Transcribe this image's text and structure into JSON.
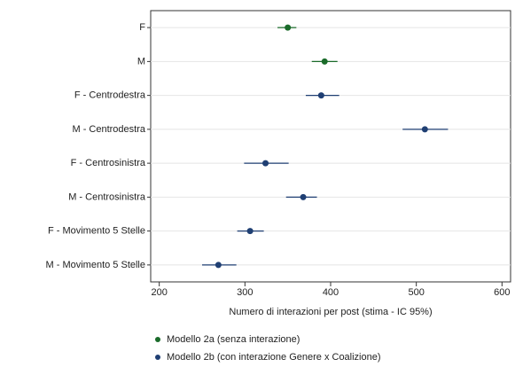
{
  "chart_data": {
    "type": "dotplot",
    "categories": [
      "F",
      "M",
      "F - Centrodestra",
      "M - Centrodestra",
      "F - Centrosinistra",
      "M - Centrosinistra",
      "F - Movimento 5 Stelle",
      "M - Movimento 5 Stelle"
    ],
    "series": [
      {
        "name": "Modello 2a (senza interazione)",
        "color": "#1a6b2a",
        "values": [
          350,
          393,
          null,
          null,
          null,
          null,
          null,
          null
        ],
        "low": [
          338,
          378,
          null,
          null,
          null,
          null,
          null,
          null
        ],
        "high": [
          360,
          408,
          null,
          null,
          null,
          null,
          null,
          null
        ]
      },
      {
        "name": "Modello 2b (con interazione Genere x Coalizione)",
        "color": "#1f3f73",
        "values": [
          null,
          null,
          389,
          510,
          324,
          368,
          306,
          269
        ],
        "low": [
          null,
          null,
          371,
          484,
          299,
          348,
          291,
          250
        ],
        "high": [
          null,
          null,
          410,
          537,
          351,
          384,
          322,
          290
        ]
      }
    ],
    "x_label": "Numero di interazioni per post (stima - IC 95%)",
    "xlim": [
      190,
      610
    ],
    "xticks": [
      200,
      300,
      400,
      500,
      600
    ],
    "grid": true
  }
}
